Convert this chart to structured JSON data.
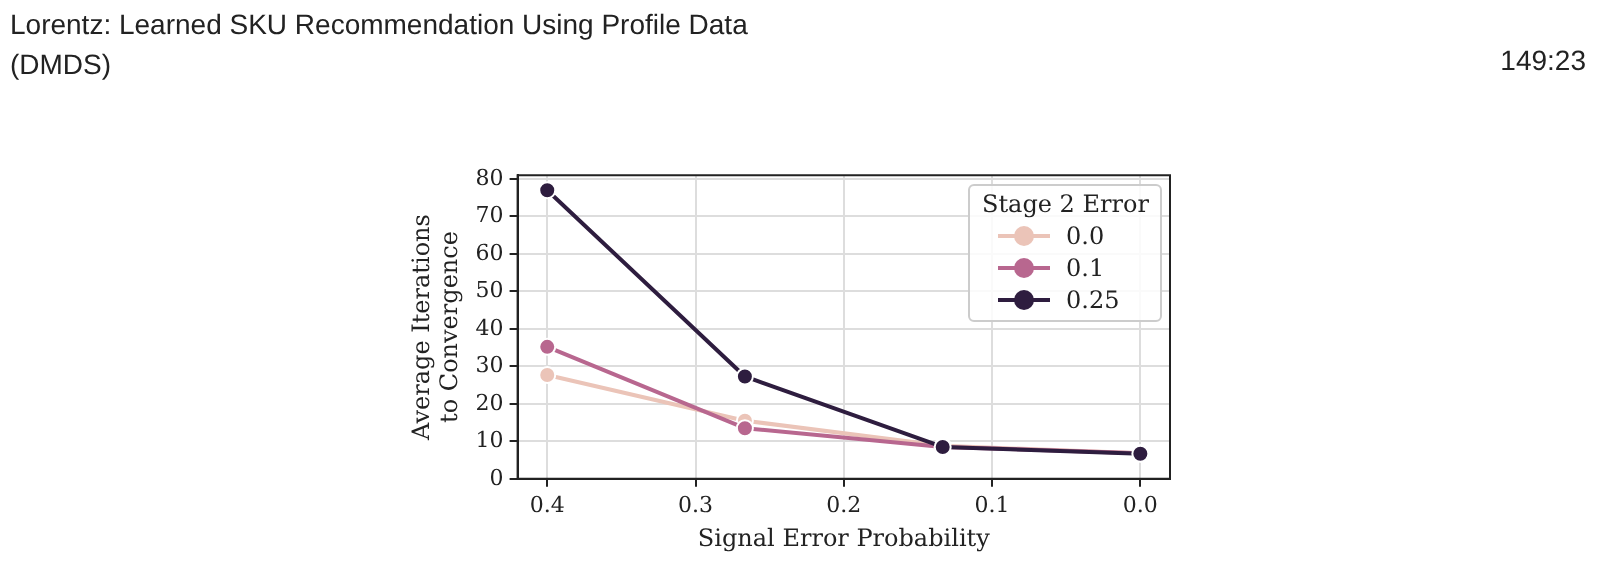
{
  "chart_data": {
    "type": "line",
    "title": "Lorentz: Learned SKU Recommendation Using Profile Data",
    "subtitle": "(DMDS)",
    "annotations": [
      "149:23"
    ],
    "xlabel": "Signal Error Probability",
    "ylabel": "Average Iterations\nto Convergence",
    "legend_title": "Stage 2 Error",
    "legend": "top right",
    "grid": true,
    "marker": "circle",
    "line_style": "solid",
    "x": [
      0.4,
      0.2667,
      0.1333,
      0.0
    ],
    "xlim": [
      0.42,
      -0.02
    ],
    "xticks": [
      0.4,
      0.3,
      0.2,
      0.1,
      {
        "value": 0,
        "label": "0.0"
      }
    ],
    "ylim": [
      0,
      81
    ],
    "yticks": [
      0,
      10,
      20,
      30,
      40,
      50,
      60,
      70,
      80
    ],
    "series": [
      {
        "name": "0.0",
        "color": "#ebc4b8",
        "values": [
          27.7,
          15.5,
          8.8,
          6.8
        ]
      },
      {
        "name": "0.1",
        "color": "#b8678f",
        "values": [
          35.2,
          13.5,
          8.5,
          6.8
        ]
      },
      {
        "name": "0.25",
        "color": "#2e1d3f",
        "values": [
          77,
          27.3,
          8.5,
          6.7
        ]
      }
    ]
  }
}
